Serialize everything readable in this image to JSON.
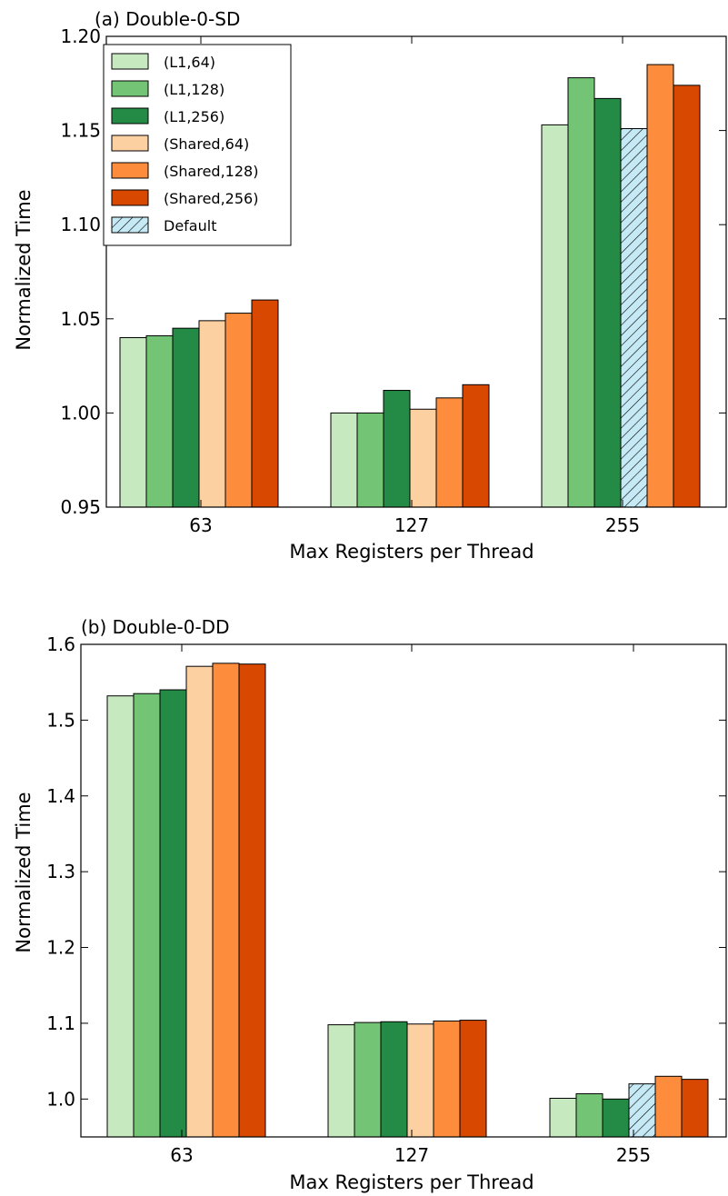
{
  "chart_data": [
    {
      "type": "bar",
      "title": "(a) Double-0-SD",
      "xlabel": "Max Registers per Thread",
      "ylabel": "Normalized Time",
      "ylim": [
        0.95,
        1.2
      ],
      "yticks": [
        "0.95",
        "1.00",
        "1.05",
        "1.10",
        "1.15",
        "1.20"
      ],
      "categories": [
        "63",
        "127",
        "255"
      ],
      "legend_position": "top-left",
      "series": [
        {
          "name": "(L1,64)",
          "color": "#c7e9c0",
          "values": [
            1.04,
            1.0,
            1.153
          ]
        },
        {
          "name": "(L1,128)",
          "color": "#74c476",
          "values": [
            1.041,
            1.0,
            1.178
          ]
        },
        {
          "name": "(L1,256)",
          "color": "#238b45",
          "values": [
            1.045,
            1.012,
            1.167
          ]
        },
        {
          "name": "(Shared,64)",
          "color": "#fdd0a2",
          "values": [
            1.049,
            1.002,
            null
          ]
        },
        {
          "name": "(Shared,128)",
          "color": "#fd8d3c",
          "values": [
            1.053,
            1.008,
            1.185
          ]
        },
        {
          "name": "(Shared,256)",
          "color": "#d94801",
          "values": [
            1.06,
            1.015,
            1.174
          ]
        },
        {
          "name": "Default",
          "color": "#c6eaf5",
          "hatched": true,
          "values": [
            null,
            null,
            1.151
          ]
        }
      ]
    },
    {
      "type": "bar",
      "title": "(b) Double-0-DD",
      "xlabel": "Max Registers per Thread",
      "ylabel": "Normalized Time",
      "ylim": [
        0.95,
        1.6
      ],
      "yticks": [
        "1.0",
        "1.1",
        "1.2",
        "1.3",
        "1.4",
        "1.5",
        "1.6"
      ],
      "categories": [
        "63",
        "127",
        "255"
      ],
      "series": [
        {
          "name": "(L1,64)",
          "color": "#c7e9c0",
          "values": [
            1.532,
            1.098,
            1.001
          ]
        },
        {
          "name": "(L1,128)",
          "color": "#74c476",
          "values": [
            1.535,
            1.101,
            1.007
          ]
        },
        {
          "name": "(L1,256)",
          "color": "#238b45",
          "values": [
            1.54,
            1.102,
            1.0
          ]
        },
        {
          "name": "(Shared,64)",
          "color": "#fdd0a2",
          "values": [
            1.571,
            1.099,
            null
          ]
        },
        {
          "name": "(Shared,128)",
          "color": "#fd8d3c",
          "values": [
            1.575,
            1.103,
            1.03
          ]
        },
        {
          "name": "(Shared,256)",
          "color": "#d94801",
          "values": [
            1.574,
            1.104,
            1.026
          ]
        },
        {
          "name": "Default",
          "color": "#c6eaf5",
          "hatched": true,
          "values": [
            null,
            null,
            1.02
          ]
        }
      ]
    }
  ]
}
